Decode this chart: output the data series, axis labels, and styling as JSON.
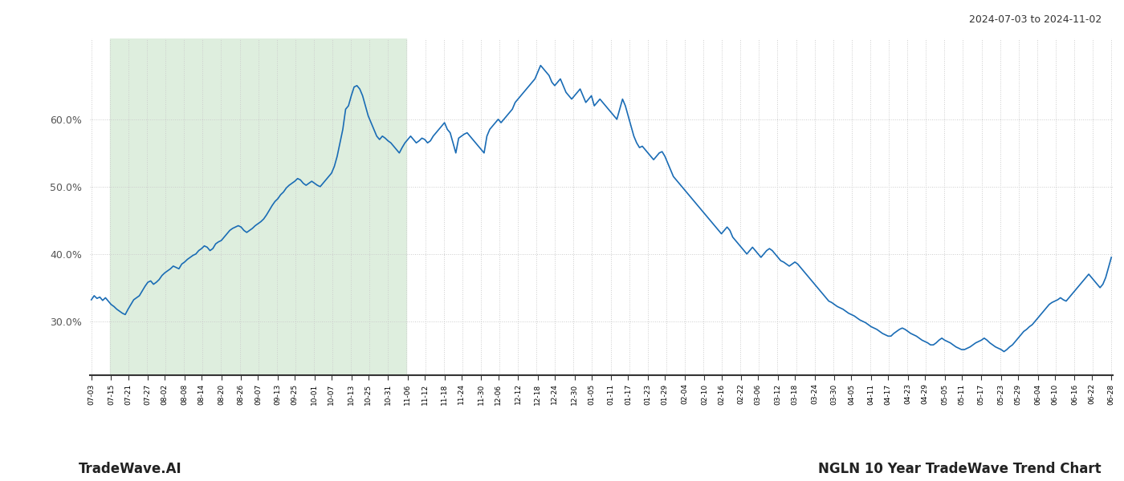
{
  "title_top_right": "2024-07-03 to 2024-11-02",
  "title_bottom_left": "TradeWave.AI",
  "title_bottom_right": "NGLN 10 Year TradeWave Trend Chart",
  "background_color": "#ffffff",
  "line_color": "#1a6cb5",
  "highlight_bg_color": "#deeede",
  "ylim": [
    22,
    72
  ],
  "yticks": [
    30.0,
    40.0,
    50.0,
    60.0
  ],
  "grid_color": "#cccccc",
  "x_labels": [
    "07-03",
    "07-15",
    "07-21",
    "07-27",
    "08-02",
    "08-08",
    "08-14",
    "08-20",
    "08-26",
    "09-07",
    "09-13",
    "09-25",
    "10-01",
    "10-07",
    "10-13",
    "10-25",
    "10-31",
    "11-06",
    "11-12",
    "11-18",
    "11-24",
    "11-30",
    "12-06",
    "12-12",
    "12-18",
    "12-24",
    "12-30",
    "01-05",
    "01-11",
    "01-17",
    "01-23",
    "01-29",
    "02-04",
    "02-10",
    "02-16",
    "02-22",
    "03-06",
    "03-12",
    "03-18",
    "03-24",
    "03-30",
    "04-05",
    "04-11",
    "04-17",
    "04-23",
    "04-29",
    "05-05",
    "05-11",
    "05-17",
    "05-23",
    "05-29",
    "06-04",
    "06-10",
    "06-16",
    "06-22",
    "06-28"
  ],
  "highlight_label_start": "07-15",
  "highlight_label_end": "11-06",
  "y_values": [
    33.2,
    33.8,
    33.4,
    33.6,
    33.1,
    33.5,
    33.0,
    32.5,
    32.2,
    31.8,
    31.5,
    31.2,
    31.0,
    31.8,
    32.5,
    33.2,
    33.5,
    33.8,
    34.5,
    35.2,
    35.8,
    36.0,
    35.5,
    35.8,
    36.2,
    36.8,
    37.2,
    37.5,
    37.8,
    38.2,
    38.0,
    37.8,
    38.5,
    38.8,
    39.2,
    39.5,
    39.8,
    40.0,
    40.5,
    40.8,
    41.2,
    41.0,
    40.5,
    40.8,
    41.5,
    41.8,
    42.0,
    42.5,
    43.0,
    43.5,
    43.8,
    44.0,
    44.2,
    44.0,
    43.5,
    43.2,
    43.5,
    43.8,
    44.2,
    44.5,
    44.8,
    45.2,
    45.8,
    46.5,
    47.2,
    47.8,
    48.2,
    48.8,
    49.2,
    49.8,
    50.2,
    50.5,
    50.8,
    51.2,
    51.0,
    50.5,
    50.2,
    50.5,
    50.8,
    50.5,
    50.2,
    50.0,
    50.5,
    51.0,
    51.5,
    52.0,
    53.0,
    54.5,
    56.5,
    58.5,
    61.5,
    62.0,
    63.5,
    64.8,
    65.0,
    64.5,
    63.5,
    62.0,
    60.5,
    59.5,
    58.5,
    57.5,
    57.0,
    57.5,
    57.2,
    56.8,
    56.5,
    56.0,
    55.5,
    55.0,
    55.8,
    56.5,
    57.0,
    57.5,
    57.0,
    56.5,
    56.8,
    57.2,
    57.0,
    56.5,
    56.8,
    57.5,
    58.0,
    58.5,
    59.0,
    59.5,
    58.5,
    58.0,
    56.5,
    55.0,
    57.2,
    57.5,
    57.8,
    58.0,
    57.5,
    57.0,
    56.5,
    56.0,
    55.5,
    55.0,
    57.5,
    58.5,
    59.0,
    59.5,
    60.0,
    59.5,
    60.0,
    60.5,
    61.0,
    61.5,
    62.5,
    63.0,
    63.5,
    64.0,
    64.5,
    65.0,
    65.5,
    66.0,
    67.0,
    68.0,
    67.5,
    67.0,
    66.5,
    65.5,
    65.0,
    65.5,
    66.0,
    65.0,
    64.0,
    63.5,
    63.0,
    63.5,
    64.0,
    64.5,
    63.5,
    62.5,
    63.0,
    63.5,
    62.0,
    62.5,
    63.0,
    62.5,
    62.0,
    61.5,
    61.0,
    60.5,
    60.0,
    61.5,
    63.0,
    62.0,
    60.5,
    59.0,
    57.5,
    56.5,
    55.8,
    56.0,
    55.5,
    55.0,
    54.5,
    54.0,
    54.5,
    55.0,
    55.2,
    54.5,
    53.5,
    52.5,
    51.5,
    51.0,
    50.5,
    50.0,
    49.5,
    49.0,
    48.5,
    48.0,
    47.5,
    47.0,
    46.5,
    46.0,
    45.5,
    45.0,
    44.5,
    44.0,
    43.5,
    43.0,
    43.5,
    44.0,
    43.5,
    42.5,
    42.0,
    41.5,
    41.0,
    40.5,
    40.0,
    40.5,
    41.0,
    40.5,
    40.0,
    39.5,
    40.0,
    40.5,
    40.8,
    40.5,
    40.0,
    39.5,
    39.0,
    38.8,
    38.5,
    38.2,
    38.5,
    38.8,
    38.5,
    38.0,
    37.5,
    37.0,
    36.5,
    36.0,
    35.5,
    35.0,
    34.5,
    34.0,
    33.5,
    33.0,
    32.8,
    32.5,
    32.2,
    32.0,
    31.8,
    31.5,
    31.2,
    31.0,
    30.8,
    30.5,
    30.2,
    30.0,
    29.8,
    29.5,
    29.2,
    29.0,
    28.8,
    28.5,
    28.2,
    28.0,
    27.8,
    27.8,
    28.2,
    28.5,
    28.8,
    29.0,
    28.8,
    28.5,
    28.2,
    28.0,
    27.8,
    27.5,
    27.2,
    27.0,
    26.8,
    26.5,
    26.5,
    26.8,
    27.2,
    27.5,
    27.2,
    27.0,
    26.8,
    26.5,
    26.2,
    26.0,
    25.8,
    25.8,
    26.0,
    26.2,
    26.5,
    26.8,
    27.0,
    27.2,
    27.5,
    27.2,
    26.8,
    26.5,
    26.2,
    26.0,
    25.8,
    25.5,
    25.8,
    26.2,
    26.5,
    27.0,
    27.5,
    28.0,
    28.5,
    28.8,
    29.2,
    29.5,
    30.0,
    30.5,
    31.0,
    31.5,
    32.0,
    32.5,
    32.8,
    33.0,
    33.2,
    33.5,
    33.2,
    33.0,
    33.5,
    34.0,
    34.5,
    35.0,
    35.5,
    36.0,
    36.5,
    37.0,
    36.5,
    36.0,
    35.5,
    35.0,
    35.5,
    36.5,
    38.0,
    39.5
  ]
}
